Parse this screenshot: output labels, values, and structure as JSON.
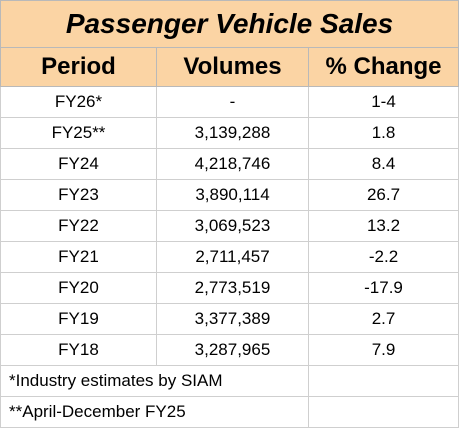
{
  "title": "Passenger Vehicle Sales",
  "columns": [
    "Period",
    "Volumes",
    "% Change"
  ],
  "rows": [
    {
      "period": "FY26*",
      "volumes": "-",
      "change": "1-4"
    },
    {
      "period": "FY25**",
      "volumes": "3,139,288",
      "change": "1.8"
    },
    {
      "period": "FY24",
      "volumes": "4,218,746",
      "change": "8.4"
    },
    {
      "period": "FY23",
      "volumes": "3,890,114",
      "change": "26.7"
    },
    {
      "period": "FY22",
      "volumes": "3,069,523",
      "change": "13.2"
    },
    {
      "period": "FY21",
      "volumes": "2,711,457",
      "change": "-2.2"
    },
    {
      "period": "FY20",
      "volumes": "2,773,519",
      "change": "-17.9"
    },
    {
      "period": "FY19",
      "volumes": "3,377,389",
      "change": "2.7"
    },
    {
      "period": "FY18",
      "volumes": "3,287,965",
      "change": "7.9"
    }
  ],
  "footnotes": [
    "*Industry estimates by SIAM",
    "**April-December FY25"
  ],
  "colors": {
    "header_fill": "#fbd4a4",
    "grid": "#cfcfcf"
  }
}
